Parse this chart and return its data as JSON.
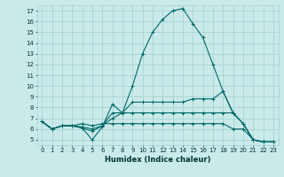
{
  "xlabel": "Humidex (Indice chaleur)",
  "bg_color": "#caeaea",
  "line_color": "#006868",
  "grid_color": "#a0d0d0",
  "xlim": [
    -0.5,
    23.5
  ],
  "ylim": [
    4.5,
    17.5
  ],
  "xticks": [
    0,
    1,
    2,
    3,
    4,
    5,
    6,
    7,
    8,
    9,
    10,
    11,
    12,
    13,
    14,
    15,
    16,
    17,
    18,
    19,
    20,
    21,
    22,
    23
  ],
  "yticks": [
    5,
    6,
    7,
    8,
    9,
    10,
    11,
    12,
    13,
    14,
    15,
    16,
    17
  ],
  "tick_fontsize": 5.0,
  "xlabel_fontsize": 6.0,
  "series": [
    {
      "x": [
        0,
        1,
        2,
        3,
        4,
        5,
        6,
        7,
        8,
        9,
        10,
        11,
        12,
        13,
        14,
        15,
        16,
        17,
        18,
        19,
        20,
        21,
        22,
        23
      ],
      "y": [
        6.7,
        6.0,
        6.3,
        6.3,
        6.1,
        5.0,
        6.2,
        8.3,
        7.5,
        10.0,
        13.0,
        15.0,
        16.2,
        17.0,
        17.2,
        15.8,
        14.5,
        12.0,
        9.5,
        7.5,
        6.5,
        5.0,
        4.8,
        4.8
      ]
    },
    {
      "x": [
        0,
        1,
        2,
        3,
        4,
        5,
        6,
        7,
        8,
        9,
        10,
        11,
        12,
        13,
        14,
        15,
        16,
        17,
        18,
        19,
        20,
        21,
        22,
        23
      ],
      "y": [
        6.7,
        6.0,
        6.3,
        6.3,
        6.2,
        6.0,
        6.3,
        7.5,
        7.5,
        8.5,
        8.5,
        8.5,
        8.5,
        8.5,
        8.5,
        8.8,
        8.8,
        8.8,
        9.5,
        7.5,
        6.5,
        5.0,
        4.8,
        4.8
      ]
    },
    {
      "x": [
        0,
        1,
        2,
        3,
        4,
        5,
        6,
        7,
        8,
        9,
        10,
        11,
        12,
        13,
        14,
        15,
        16,
        17,
        18,
        19,
        20,
        21,
        22,
        23
      ],
      "y": [
        6.7,
        6.0,
        6.3,
        6.3,
        6.1,
        5.8,
        6.3,
        7.0,
        7.5,
        7.5,
        7.5,
        7.5,
        7.5,
        7.5,
        7.5,
        7.5,
        7.5,
        7.5,
        7.5,
        7.5,
        6.5,
        5.0,
        4.8,
        4.8
      ]
    },
    {
      "x": [
        0,
        1,
        2,
        3,
        4,
        5,
        6,
        7,
        8,
        9,
        10,
        11,
        12,
        13,
        14,
        15,
        16,
        17,
        18,
        19,
        20,
        21,
        22,
        23
      ],
      "y": [
        6.7,
        6.0,
        6.3,
        6.3,
        6.5,
        6.3,
        6.5,
        6.5,
        6.5,
        6.5,
        6.5,
        6.5,
        6.5,
        6.5,
        6.5,
        6.5,
        6.5,
        6.5,
        6.5,
        6.0,
        6.0,
        5.0,
        4.8,
        4.8
      ]
    }
  ]
}
